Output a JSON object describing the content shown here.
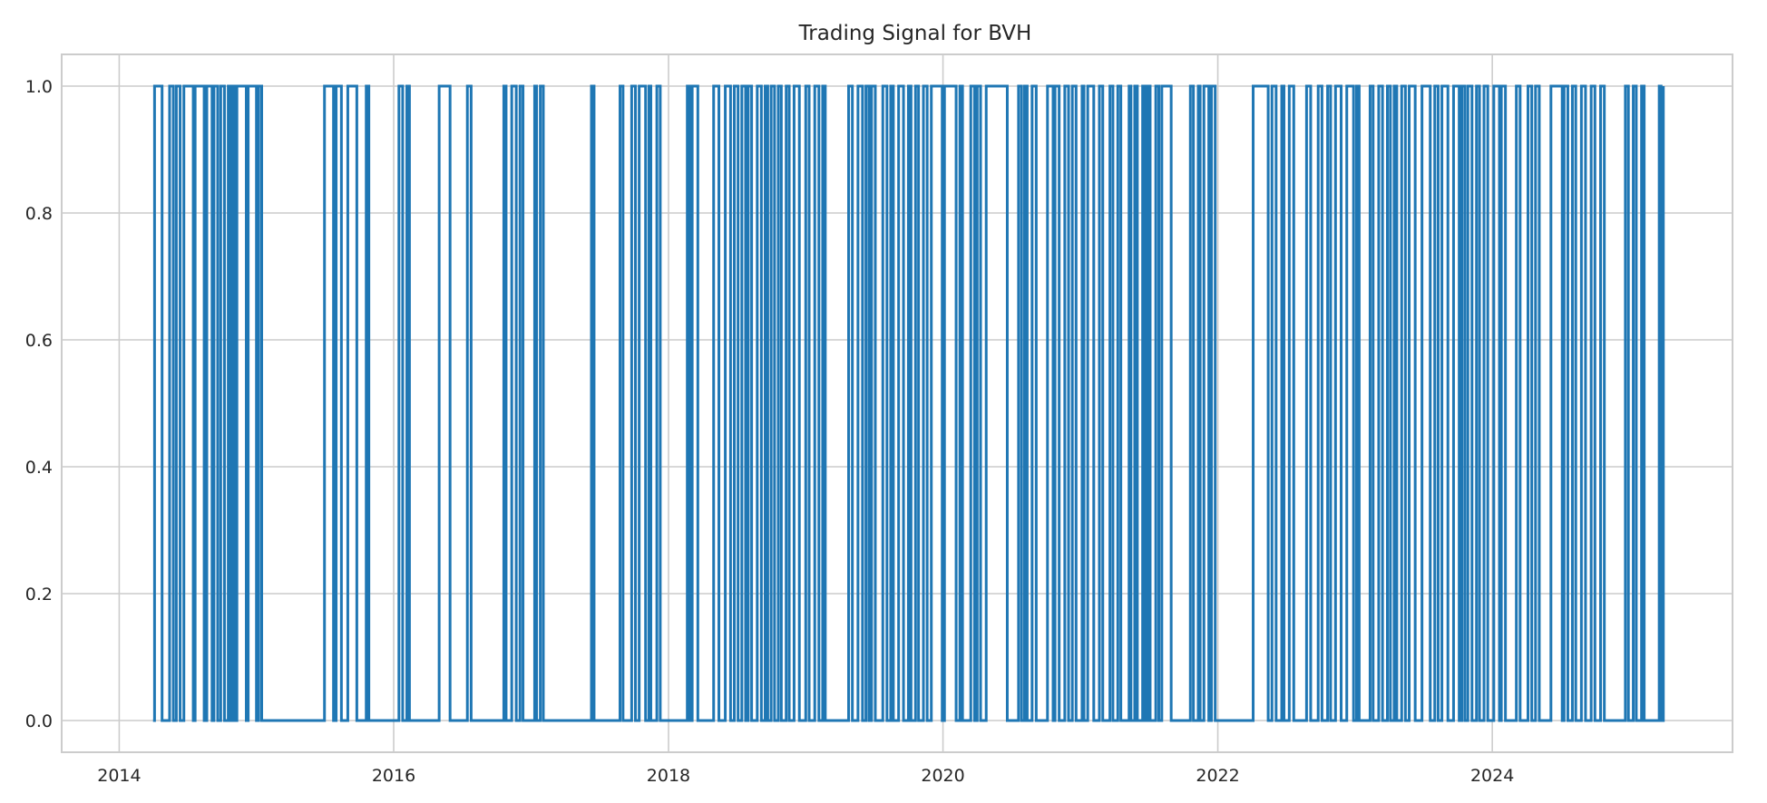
{
  "chart_data": {
    "type": "line",
    "title": "Trading Signal for BVH",
    "xlabel": "",
    "ylabel": "",
    "x_ticks": [
      "2014",
      "2016",
      "2018",
      "2020",
      "2022",
      "2024"
    ],
    "y_ticks": [
      "0.0",
      "0.2",
      "0.4",
      "0.6",
      "0.8",
      "1.0"
    ],
    "xlim": [
      "2013-08-01",
      "2025-10-01"
    ],
    "ylim": [
      -0.05,
      1.05
    ],
    "grid": true,
    "line_style": "step",
    "series": [
      {
        "color": "#1f77b4",
        "data": [
          [
            "2014-04-01",
            0
          ],
          [
            "2014-04-05",
            1
          ],
          [
            "2014-04-25",
            0
          ],
          [
            "2014-05-15",
            1
          ],
          [
            "2014-05-25",
            0
          ],
          [
            "2014-06-02",
            1
          ],
          [
            "2014-06-12",
            0
          ],
          [
            "2014-06-22",
            1
          ],
          [
            "2014-07-17",
            0
          ],
          [
            "2014-07-22",
            1
          ],
          [
            "2014-08-15",
            0
          ],
          [
            "2014-08-22",
            1
          ],
          [
            "2014-09-05",
            0
          ],
          [
            "2014-09-10",
            1
          ],
          [
            "2014-09-20",
            0
          ],
          [
            "2014-09-28",
            1
          ],
          [
            "2014-10-08",
            0
          ],
          [
            "2014-10-18",
            1
          ],
          [
            "2014-10-24",
            0
          ],
          [
            "2014-10-30",
            1
          ],
          [
            "2014-11-05",
            0
          ],
          [
            "2014-11-10",
            1
          ],
          [
            "2014-12-05",
            0
          ],
          [
            "2014-12-10",
            1
          ],
          [
            "2015-01-01",
            0
          ],
          [
            "2015-01-07",
            1
          ],
          [
            "2015-01-15",
            0
          ],
          [
            "2015-07-01",
            1
          ],
          [
            "2015-07-25",
            0
          ],
          [
            "2015-08-01",
            1
          ],
          [
            "2015-08-15",
            0
          ],
          [
            "2015-09-01",
            1
          ],
          [
            "2015-09-25",
            0
          ],
          [
            "2015-10-20",
            1
          ],
          [
            "2015-10-27",
            0
          ],
          [
            "2016-01-15",
            1
          ],
          [
            "2016-01-25",
            0
          ],
          [
            "2016-02-05",
            1
          ],
          [
            "2016-02-12",
            0
          ],
          [
            "2016-05-01",
            1
          ],
          [
            "2016-05-30",
            0
          ],
          [
            "2016-07-15",
            1
          ],
          [
            "2016-07-25",
            0
          ],
          [
            "2016-10-20",
            1
          ],
          [
            "2016-10-26",
            0
          ],
          [
            "2016-11-10",
            1
          ],
          [
            "2016-11-22",
            0
          ],
          [
            "2016-12-02",
            1
          ],
          [
            "2016-12-10",
            0
          ],
          [
            "2017-01-10",
            1
          ],
          [
            "2017-01-15",
            0
          ],
          [
            "2017-01-25",
            1
          ],
          [
            "2017-02-02",
            0
          ],
          [
            "2017-06-10",
            1
          ],
          [
            "2017-06-17",
            0
          ],
          [
            "2017-08-25",
            1
          ],
          [
            "2017-09-02",
            0
          ],
          [
            "2017-09-25",
            1
          ],
          [
            "2017-10-05",
            0
          ],
          [
            "2017-10-15",
            1
          ],
          [
            "2017-11-01",
            0
          ],
          [
            "2017-11-10",
            1
          ],
          [
            "2017-11-15",
            0
          ],
          [
            "2017-12-01",
            1
          ],
          [
            "2017-12-10",
            0
          ],
          [
            "2018-02-20",
            1
          ],
          [
            "2018-02-26",
            0
          ],
          [
            "2018-03-05",
            1
          ],
          [
            "2018-03-20",
            0
          ],
          [
            "2018-05-01",
            1
          ],
          [
            "2018-05-15",
            0
          ],
          [
            "2018-06-01",
            1
          ],
          [
            "2018-06-15",
            0
          ],
          [
            "2018-06-25",
            1
          ],
          [
            "2018-07-05",
            0
          ],
          [
            "2018-07-15",
            1
          ],
          [
            "2018-07-25",
            0
          ],
          [
            "2018-08-01",
            1
          ],
          [
            "2018-08-10",
            0
          ],
          [
            "2018-08-25",
            1
          ],
          [
            "2018-09-05",
            0
          ],
          [
            "2018-09-15",
            1
          ],
          [
            "2018-09-22",
            0
          ],
          [
            "2018-10-01",
            1
          ],
          [
            "2018-10-10",
            0
          ],
          [
            "2018-10-20",
            1
          ],
          [
            "2018-10-28",
            0
          ],
          [
            "2018-11-10",
            1
          ],
          [
            "2018-11-18",
            0
          ],
          [
            "2018-12-01",
            1
          ],
          [
            "2018-12-15",
            0
          ],
          [
            "2019-01-01",
            1
          ],
          [
            "2019-01-10",
            0
          ],
          [
            "2019-01-25",
            1
          ],
          [
            "2019-02-05",
            0
          ],
          [
            "2019-02-15",
            1
          ],
          [
            "2019-02-22",
            0
          ],
          [
            "2019-04-25",
            1
          ],
          [
            "2019-05-05",
            0
          ],
          [
            "2019-05-20",
            1
          ],
          [
            "2019-06-01",
            0
          ],
          [
            "2019-06-10",
            1
          ],
          [
            "2019-06-18",
            0
          ],
          [
            "2019-06-25",
            1
          ],
          [
            "2019-07-05",
            0
          ],
          [
            "2019-07-25",
            1
          ],
          [
            "2019-08-05",
            0
          ],
          [
            "2019-08-15",
            1
          ],
          [
            "2019-08-22",
            0
          ],
          [
            "2019-09-05",
            1
          ],
          [
            "2019-09-18",
            0
          ],
          [
            "2019-10-01",
            1
          ],
          [
            "2019-10-08",
            0
          ],
          [
            "2019-10-20",
            1
          ],
          [
            "2019-10-28",
            0
          ],
          [
            "2019-11-10",
            1
          ],
          [
            "2019-11-20",
            0
          ],
          [
            "2019-12-01",
            1
          ],
          [
            "2019-12-30",
            0
          ],
          [
            "2020-01-05",
            1
          ],
          [
            "2020-02-05",
            0
          ],
          [
            "2020-02-15",
            1
          ],
          [
            "2020-02-22",
            0
          ],
          [
            "2020-03-15",
            1
          ],
          [
            "2020-03-25",
            0
          ],
          [
            "2020-04-01",
            1
          ],
          [
            "2020-04-10",
            0
          ],
          [
            "2020-04-25",
            1
          ],
          [
            "2020-06-20",
            0
          ],
          [
            "2020-07-20",
            1
          ],
          [
            "2020-07-28",
            0
          ],
          [
            "2020-08-05",
            1
          ],
          [
            "2020-08-12",
            0
          ],
          [
            "2020-08-25",
            1
          ],
          [
            "2020-09-05",
            0
          ],
          [
            "2020-10-05",
            1
          ],
          [
            "2020-10-20",
            0
          ],
          [
            "2020-10-25",
            1
          ],
          [
            "2020-11-05",
            0
          ],
          [
            "2020-11-20",
            1
          ],
          [
            "2020-11-30",
            0
          ],
          [
            "2020-12-10",
            1
          ],
          [
            "2020-12-20",
            0
          ],
          [
            "2021-01-05",
            1
          ],
          [
            "2021-01-10",
            0
          ],
          [
            "2021-01-20",
            1
          ],
          [
            "2021-02-05",
            0
          ],
          [
            "2021-02-20",
            1
          ],
          [
            "2021-03-01",
            0
          ],
          [
            "2021-03-20",
            1
          ],
          [
            "2021-03-28",
            0
          ],
          [
            "2021-04-10",
            1
          ],
          [
            "2021-04-18",
            0
          ],
          [
            "2021-05-10",
            1
          ],
          [
            "2021-05-15",
            0
          ],
          [
            "2021-05-25",
            1
          ],
          [
            "2021-06-01",
            0
          ],
          [
            "2021-06-15",
            1
          ],
          [
            "2021-06-22",
            0
          ],
          [
            "2021-06-28",
            1
          ],
          [
            "2021-07-05",
            0
          ],
          [
            "2021-07-20",
            1
          ],
          [
            "2021-07-28",
            0
          ],
          [
            "2021-08-05",
            1
          ],
          [
            "2021-08-30",
            0
          ],
          [
            "2021-10-20",
            1
          ],
          [
            "2021-10-28",
            0
          ],
          [
            "2021-11-10",
            1
          ],
          [
            "2021-11-15",
            0
          ],
          [
            "2021-11-25",
            1
          ],
          [
            "2021-12-08",
            0
          ],
          [
            "2021-12-15",
            1
          ],
          [
            "2021-12-25",
            0
          ],
          [
            "2022-04-05",
            1
          ],
          [
            "2022-05-15",
            0
          ],
          [
            "2022-05-25",
            1
          ],
          [
            "2022-06-05",
            0
          ],
          [
            "2022-06-20",
            1
          ],
          [
            "2022-06-26",
            0
          ],
          [
            "2022-07-10",
            1
          ],
          [
            "2022-07-22",
            0
          ],
          [
            "2022-08-25",
            1
          ],
          [
            "2022-09-05",
            0
          ],
          [
            "2022-09-25",
            1
          ],
          [
            "2022-10-05",
            0
          ],
          [
            "2022-10-20",
            1
          ],
          [
            "2022-10-28",
            0
          ],
          [
            "2022-11-10",
            1
          ],
          [
            "2022-11-25",
            0
          ],
          [
            "2022-12-10",
            1
          ],
          [
            "2022-12-28",
            0
          ],
          [
            "2023-01-05",
            1
          ],
          [
            "2023-01-12",
            0
          ],
          [
            "2023-02-10",
            1
          ],
          [
            "2023-02-18",
            0
          ],
          [
            "2023-03-05",
            1
          ],
          [
            "2023-03-15",
            0
          ],
          [
            "2023-03-28",
            1
          ],
          [
            "2023-04-05",
            0
          ],
          [
            "2023-04-15",
            1
          ],
          [
            "2023-04-22",
            0
          ],
          [
            "2023-05-05",
            1
          ],
          [
            "2023-05-15",
            0
          ],
          [
            "2023-05-25",
            1
          ],
          [
            "2023-06-10",
            0
          ],
          [
            "2023-06-28",
            1
          ],
          [
            "2023-07-20",
            0
          ],
          [
            "2023-08-01",
            1
          ],
          [
            "2023-08-10",
            0
          ],
          [
            "2023-08-20",
            1
          ],
          [
            "2023-09-05",
            0
          ],
          [
            "2023-09-20",
            1
          ],
          [
            "2023-10-05",
            0
          ],
          [
            "2023-10-12",
            1
          ],
          [
            "2023-10-20",
            0
          ],
          [
            "2023-10-28",
            1
          ],
          [
            "2023-11-08",
            0
          ],
          [
            "2023-11-20",
            1
          ],
          [
            "2023-11-28",
            0
          ],
          [
            "2023-12-10",
            1
          ],
          [
            "2023-12-20",
            0
          ],
          [
            "2024-01-05",
            1
          ],
          [
            "2024-01-20",
            0
          ],
          [
            "2024-01-25",
            1
          ],
          [
            "2024-02-05",
            0
          ],
          [
            "2024-03-05",
            1
          ],
          [
            "2024-03-15",
            0
          ],
          [
            "2024-04-05",
            1
          ],
          [
            "2024-04-15",
            0
          ],
          [
            "2024-04-25",
            1
          ],
          [
            "2024-05-05",
            0
          ],
          [
            "2024-06-05",
            1
          ],
          [
            "2024-07-05",
            0
          ],
          [
            "2024-07-10",
            1
          ],
          [
            "2024-07-20",
            0
          ],
          [
            "2024-08-01",
            1
          ],
          [
            "2024-08-10",
            0
          ],
          [
            "2024-08-25",
            1
          ],
          [
            "2024-09-05",
            0
          ],
          [
            "2024-09-20",
            1
          ],
          [
            "2024-09-30",
            0
          ],
          [
            "2024-10-15",
            1
          ],
          [
            "2024-10-25",
            0
          ],
          [
            "2024-12-20",
            1
          ],
          [
            "2024-12-28",
            0
          ],
          [
            "2025-01-10",
            1
          ],
          [
            "2025-01-18",
            0
          ],
          [
            "2025-02-01",
            1
          ],
          [
            "2025-02-08",
            0
          ],
          [
            "2025-03-20",
            1
          ],
          [
            "2025-03-25",
            0
          ],
          [
            "2025-03-31",
            1
          ]
        ]
      }
    ]
  }
}
